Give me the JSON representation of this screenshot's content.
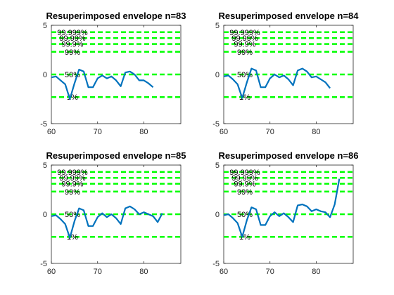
{
  "colors": {
    "series": "#0072bd",
    "reference": "#00ff00",
    "axes": "#262626"
  },
  "chart_data": [
    {
      "type": "line",
      "title": "Resuperimposed envelope n=83",
      "xlabel": "",
      "ylabel": "",
      "xlim": [
        60,
        88
      ],
      "ylim": [
        -5,
        5
      ],
      "xticks": [
        60,
        70,
        80
      ],
      "yticks": [
        -5,
        0,
        5
      ],
      "reference_lines": [
        {
          "label": "99.999%",
          "y": 4.3
        },
        {
          "label": "99.99%",
          "y": 3.7
        },
        {
          "label": "99.9%",
          "y": 3.1
        },
        {
          "label": "99%",
          "y": 2.3
        },
        {
          "label": "50%",
          "y": 0.0
        },
        {
          "label": "1%",
          "y": -2.3
        }
      ],
      "series": [
        {
          "x": [
            60,
            61,
            62,
            63,
            64,
            65,
            66,
            67,
            68,
            69,
            70,
            71,
            72,
            73,
            74,
            75,
            76,
            77,
            78,
            79,
            80,
            81,
            82
          ],
          "y": [
            -0.3,
            -0.2,
            -0.6,
            -1.0,
            -2.5,
            -0.9,
            0.5,
            0.3,
            -1.3,
            -1.3,
            -0.4,
            -0.1,
            -0.4,
            -0.2,
            -0.6,
            -1.2,
            0.2,
            0.3,
            0.0,
            -0.6,
            -0.6,
            -0.9,
            -1.3
          ]
        }
      ]
    },
    {
      "type": "line",
      "title": "Resuperimposed envelope n=84",
      "xlabel": "",
      "ylabel": "",
      "xlim": [
        60,
        88
      ],
      "ylim": [
        -5,
        5
      ],
      "xticks": [
        60,
        70,
        80
      ],
      "yticks": [
        -5,
        0,
        5
      ],
      "reference_lines": [
        {
          "label": "99.999%",
          "y": 4.3
        },
        {
          "label": "99.99%",
          "y": 3.7
        },
        {
          "label": "99.9%",
          "y": 3.1
        },
        {
          "label": "99%",
          "y": 2.3
        },
        {
          "label": "50%",
          "y": 0.0
        },
        {
          "label": "1%",
          "y": -2.3
        }
      ],
      "series": [
        {
          "x": [
            60,
            61,
            62,
            63,
            64,
            65,
            66,
            67,
            68,
            69,
            70,
            71,
            72,
            73,
            74,
            75,
            76,
            77,
            78,
            79,
            80,
            81,
            82,
            83
          ],
          "y": [
            -0.2,
            -0.1,
            -0.5,
            -1.0,
            -2.4,
            -0.8,
            0.6,
            0.4,
            -1.3,
            -1.3,
            -0.4,
            0.0,
            -0.3,
            -0.1,
            -0.5,
            -1.1,
            0.4,
            0.6,
            0.3,
            -0.3,
            -0.2,
            -0.5,
            -0.8,
            -1.4
          ]
        }
      ]
    },
    {
      "type": "line",
      "title": "Resuperimposed envelope n=85",
      "xlabel": "",
      "ylabel": "",
      "xlim": [
        60,
        88
      ],
      "ylim": [
        -5,
        5
      ],
      "xticks": [
        60,
        70,
        80
      ],
      "yticks": [
        -5,
        0,
        5
      ],
      "reference_lines": [
        {
          "label": "99.999%",
          "y": 4.3
        },
        {
          "label": "99.99%",
          "y": 3.7
        },
        {
          "label": "99.9%",
          "y": 3.1
        },
        {
          "label": "99%",
          "y": 2.3
        },
        {
          "label": "50%",
          "y": 0.0
        },
        {
          "label": "1%",
          "y": -2.3
        }
      ],
      "series": [
        {
          "x": [
            60,
            61,
            62,
            63,
            64,
            65,
            66,
            67,
            68,
            69,
            70,
            71,
            72,
            73,
            74,
            75,
            76,
            77,
            78,
            79,
            80,
            81,
            82,
            83,
            84
          ],
          "y": [
            -0.2,
            -0.1,
            -0.5,
            -1.0,
            -2.4,
            -0.7,
            0.6,
            0.4,
            -1.2,
            -1.2,
            -0.3,
            0.1,
            -0.3,
            0.0,
            -0.4,
            -1.0,
            0.6,
            0.8,
            0.5,
            0.0,
            0.2,
            0.0,
            -0.2,
            -0.8,
            0.1
          ]
        }
      ]
    },
    {
      "type": "line",
      "title": "Resuperimposed envelope n=86",
      "xlabel": "",
      "ylabel": "",
      "xlim": [
        60,
        88
      ],
      "ylim": [
        -5,
        5
      ],
      "xticks": [
        60,
        70,
        80
      ],
      "yticks": [
        -5,
        0,
        5
      ],
      "reference_lines": [
        {
          "label": "99.999%",
          "y": 4.3
        },
        {
          "label": "99.99%",
          "y": 3.7
        },
        {
          "label": "99.9%",
          "y": 3.1
        },
        {
          "label": "99%",
          "y": 2.3
        },
        {
          "label": "50%",
          "y": 0.0
        },
        {
          "label": "1%",
          "y": -2.3
        }
      ],
      "series": [
        {
          "x": [
            60,
            61,
            62,
            63,
            64,
            65,
            66,
            67,
            68,
            69,
            70,
            71,
            72,
            73,
            74,
            75,
            76,
            77,
            78,
            79,
            80,
            81,
            82,
            83,
            84,
            85
          ],
          "y": [
            -0.1,
            0.0,
            -0.4,
            -0.9,
            -2.3,
            -0.6,
            0.7,
            0.5,
            -1.1,
            -1.1,
            -0.2,
            0.2,
            -0.2,
            0.1,
            -0.3,
            -0.8,
            0.9,
            1.0,
            0.8,
            0.3,
            0.5,
            0.3,
            0.2,
            -0.3,
            1.0,
            3.6
          ]
        }
      ]
    }
  ]
}
